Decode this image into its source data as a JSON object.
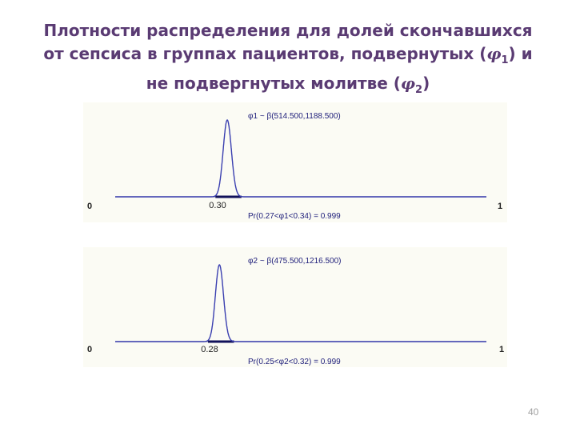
{
  "slide": {
    "title_part1": "Плотности распределения для долей скончавшихся от сепсиса в группах пациентов, подвернутых (",
    "title_sym1": "φ",
    "title_sub1": "1",
    "title_part2": ") и не подвергнутых молитве (",
    "title_sym2": "φ",
    "title_sub2": "2",
    "title_part3": ")",
    "page_number": "40"
  },
  "colors": {
    "curve": "#3a3fb0",
    "axis": "#9090a0",
    "panel_bg": "#fbfbf4",
    "title": "#5a3b73"
  },
  "chart_data": [
    {
      "type": "line",
      "distribution_label": "φ1 ~ β(514.500,1188.500)",
      "alpha": 514.5,
      "beta": 1188.5,
      "xlim": [
        0,
        1
      ],
      "x_min_label": "0",
      "x_max_label": "1",
      "mean_label": "0.30",
      "mean_value": 0.3,
      "interval": [
        0.27,
        0.34
      ],
      "probability_label": "Pr(0.27<φ1<0.34) = 0.999"
    },
    {
      "type": "line",
      "distribution_label": "φ2 ~ β(475.500,1216.500)",
      "alpha": 475.5,
      "beta": 1216.5,
      "xlim": [
        0,
        1
      ],
      "x_min_label": "0",
      "x_max_label": "1",
      "mean_label": "0.28",
      "mean_value": 0.28,
      "interval": [
        0.25,
        0.32
      ],
      "probability_label": "Pr(0.25<φ2<0.32) = 0.999"
    }
  ]
}
